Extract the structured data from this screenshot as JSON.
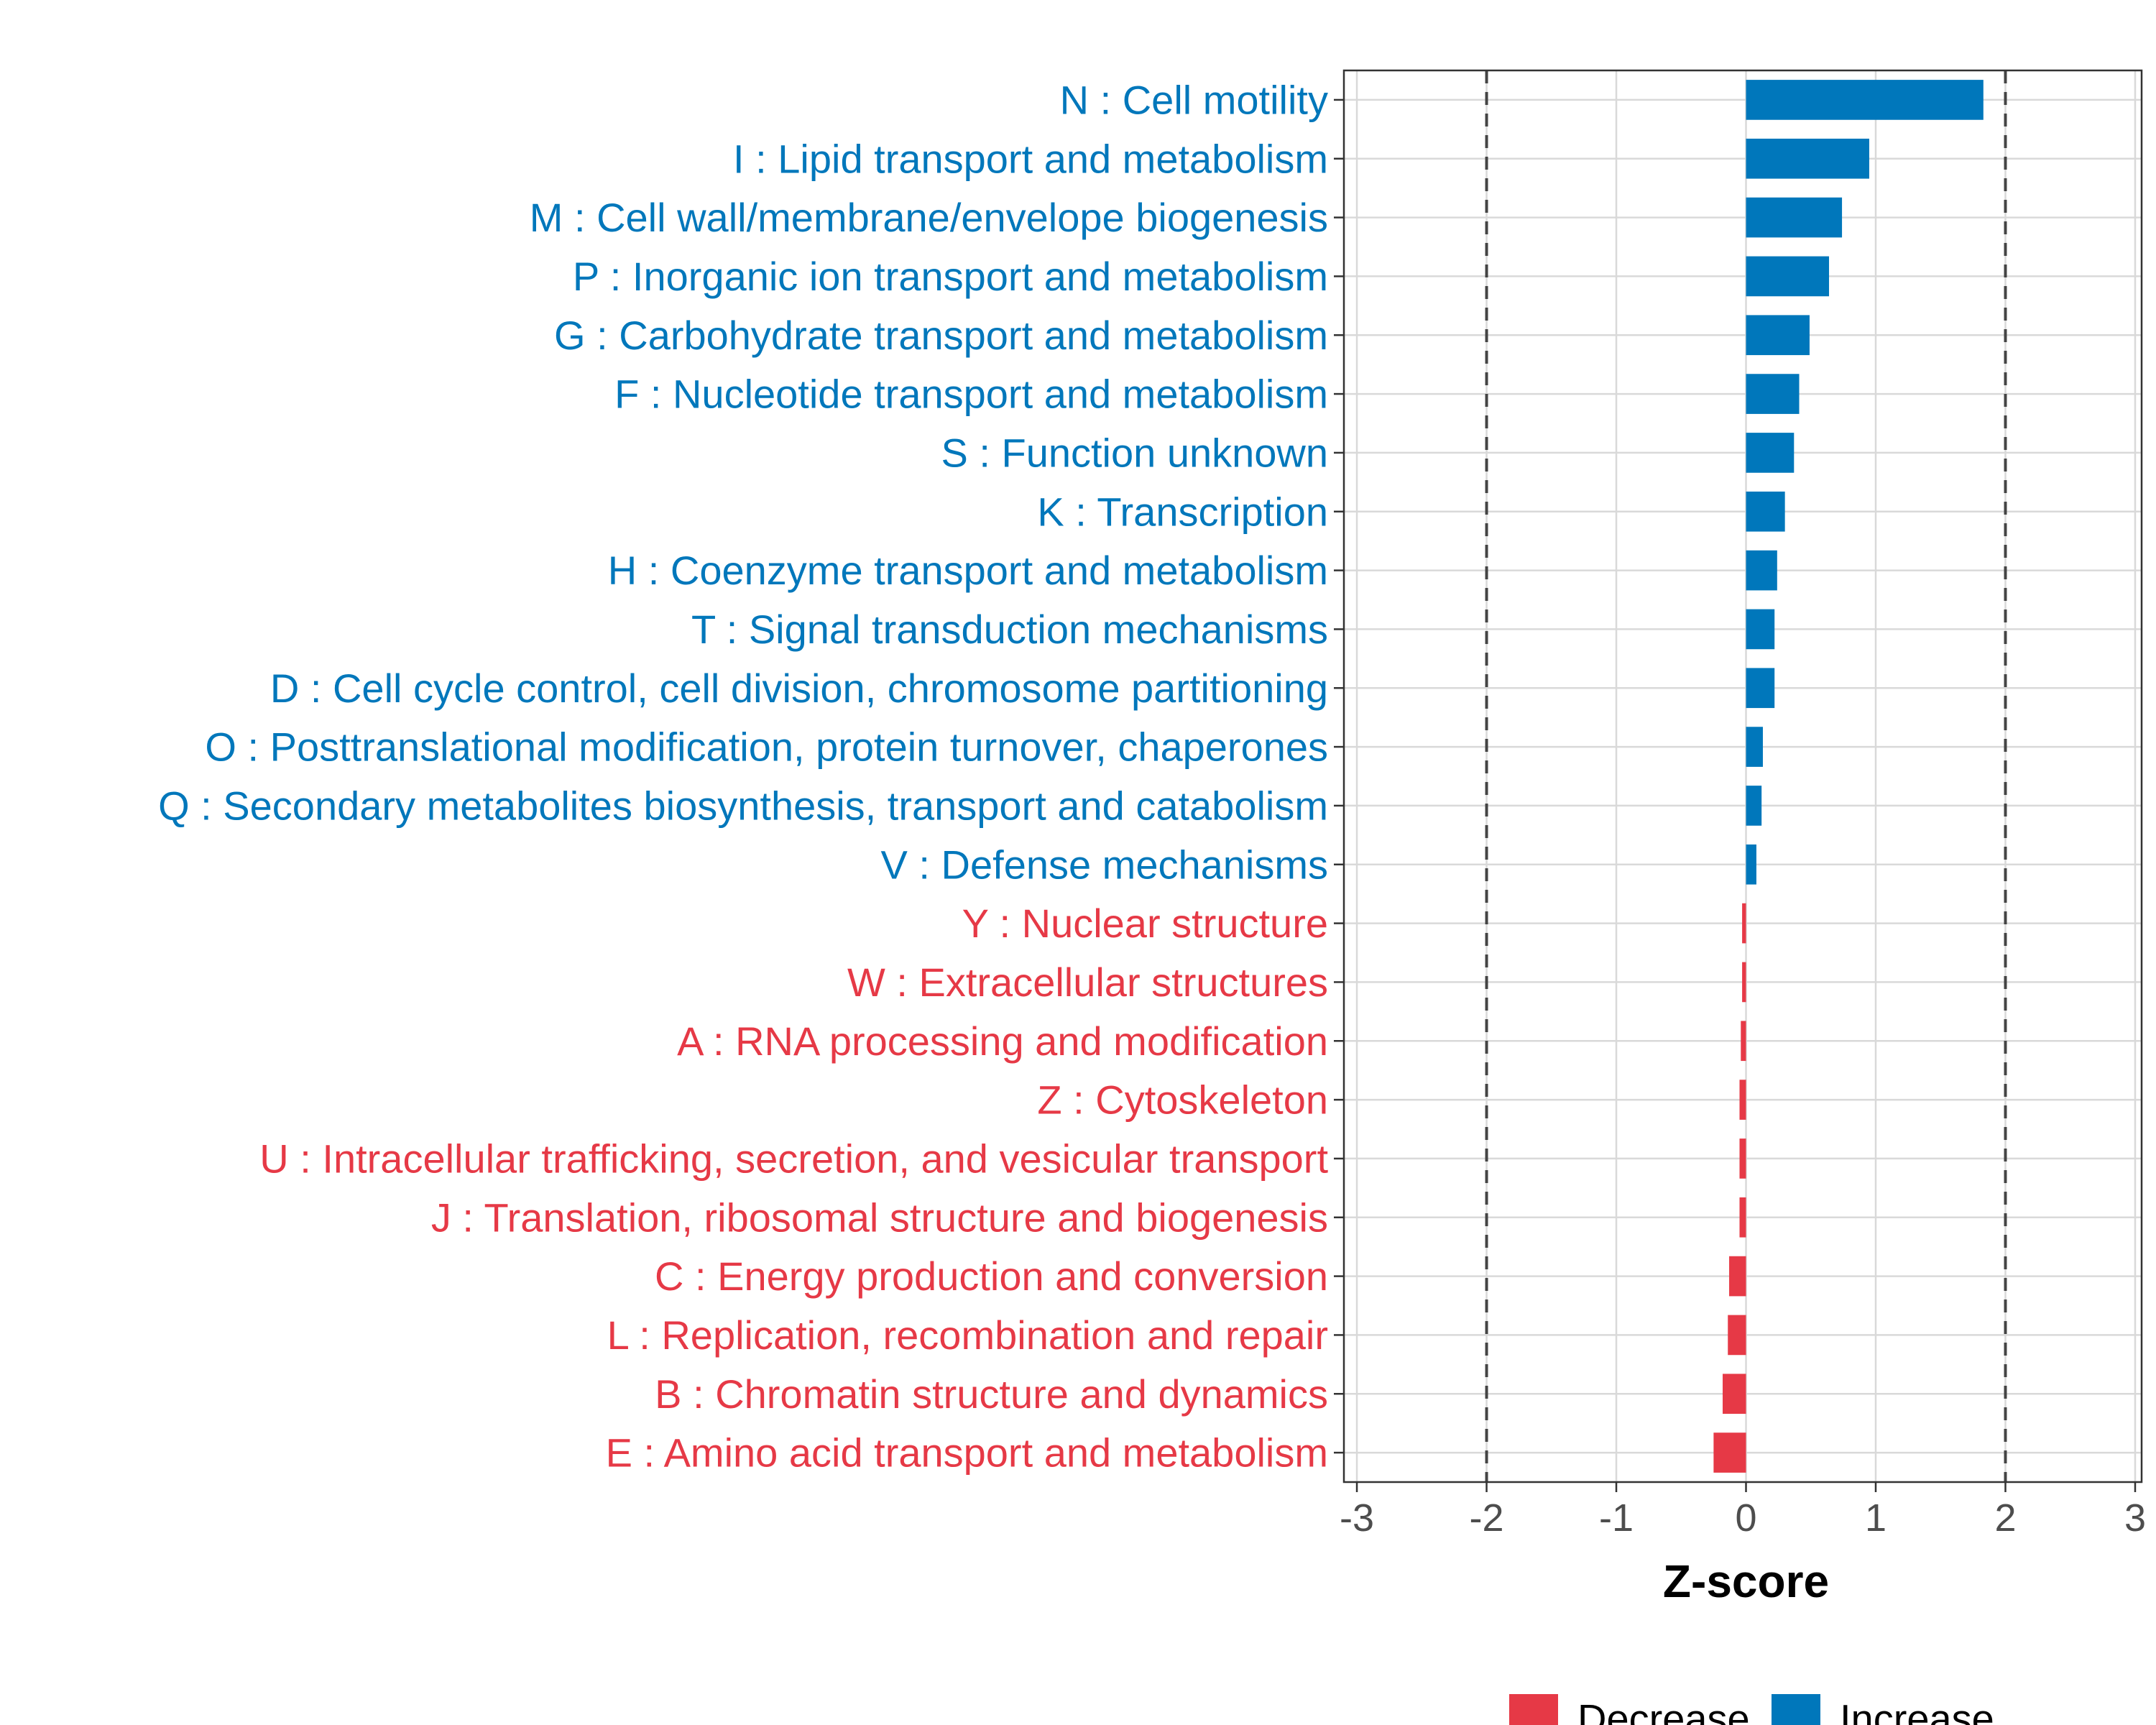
{
  "chart_data": {
    "type": "bar",
    "orientation": "horizontal",
    "xlabel": "Z-score",
    "xlim": [
      -3.1,
      3.05
    ],
    "xticks": [
      -3,
      -2,
      -1,
      0,
      1,
      2,
      3
    ],
    "xtick_labels": [
      "-3",
      "-2",
      "-1",
      "0",
      "1",
      "2",
      "3"
    ],
    "reference_lines": [
      -2,
      2
    ],
    "grid": true,
    "categories": [
      "N : Cell motility",
      "I : Lipid transport and metabolism",
      "M : Cell wall/membrane/envelope biogenesis",
      "P : Inorganic ion transport and metabolism",
      "G : Carbohydrate transport and metabolism",
      "F : Nucleotide transport and metabolism",
      "S : Function unknown",
      "K : Transcription",
      "H : Coenzyme transport and metabolism",
      "T : Signal transduction mechanisms",
      "D : Cell cycle control, cell division, chromosome partitioning",
      "O : Posttranslational modification, protein turnover, chaperones",
      "Q : Secondary metabolites biosynthesis, transport and catabolism",
      "V : Defense mechanisms",
      "Y : Nuclear structure",
      "W : Extracellular structures",
      "A : RNA processing and modification",
      "Z : Cytoskeleton",
      "U : Intracellular trafficking, secretion, and vesicular transport",
      "J : Translation, ribosomal structure and biogenesis",
      "C : Energy production and conversion",
      "L : Replication, recombination and repair",
      "B : Chromatin structure and dynamics",
      "E : Amino acid transport and metabolism"
    ],
    "values": [
      1.83,
      0.95,
      0.74,
      0.64,
      0.49,
      0.41,
      0.37,
      0.3,
      0.24,
      0.22,
      0.22,
      0.13,
      0.12,
      0.08,
      -0.03,
      -0.03,
      -0.04,
      -0.05,
      -0.05,
      -0.05,
      -0.13,
      -0.14,
      -0.18,
      -0.25
    ],
    "groups": [
      "Increase",
      "Increase",
      "Increase",
      "Increase",
      "Increase",
      "Increase",
      "Increase",
      "Increase",
      "Increase",
      "Increase",
      "Increase",
      "Increase",
      "Increase",
      "Increase",
      "Decrease",
      "Decrease",
      "Decrease",
      "Decrease",
      "Decrease",
      "Decrease",
      "Decrease",
      "Decrease",
      "Decrease",
      "Decrease"
    ],
    "legend": {
      "position": "bottom",
      "entries": [
        {
          "label": "Decrease",
          "color": "#E63946"
        },
        {
          "label": "Increase",
          "color": "#0077BB"
        }
      ]
    },
    "colors": {
      "Increase": "#0077BB",
      "Decrease": "#E63946"
    }
  }
}
